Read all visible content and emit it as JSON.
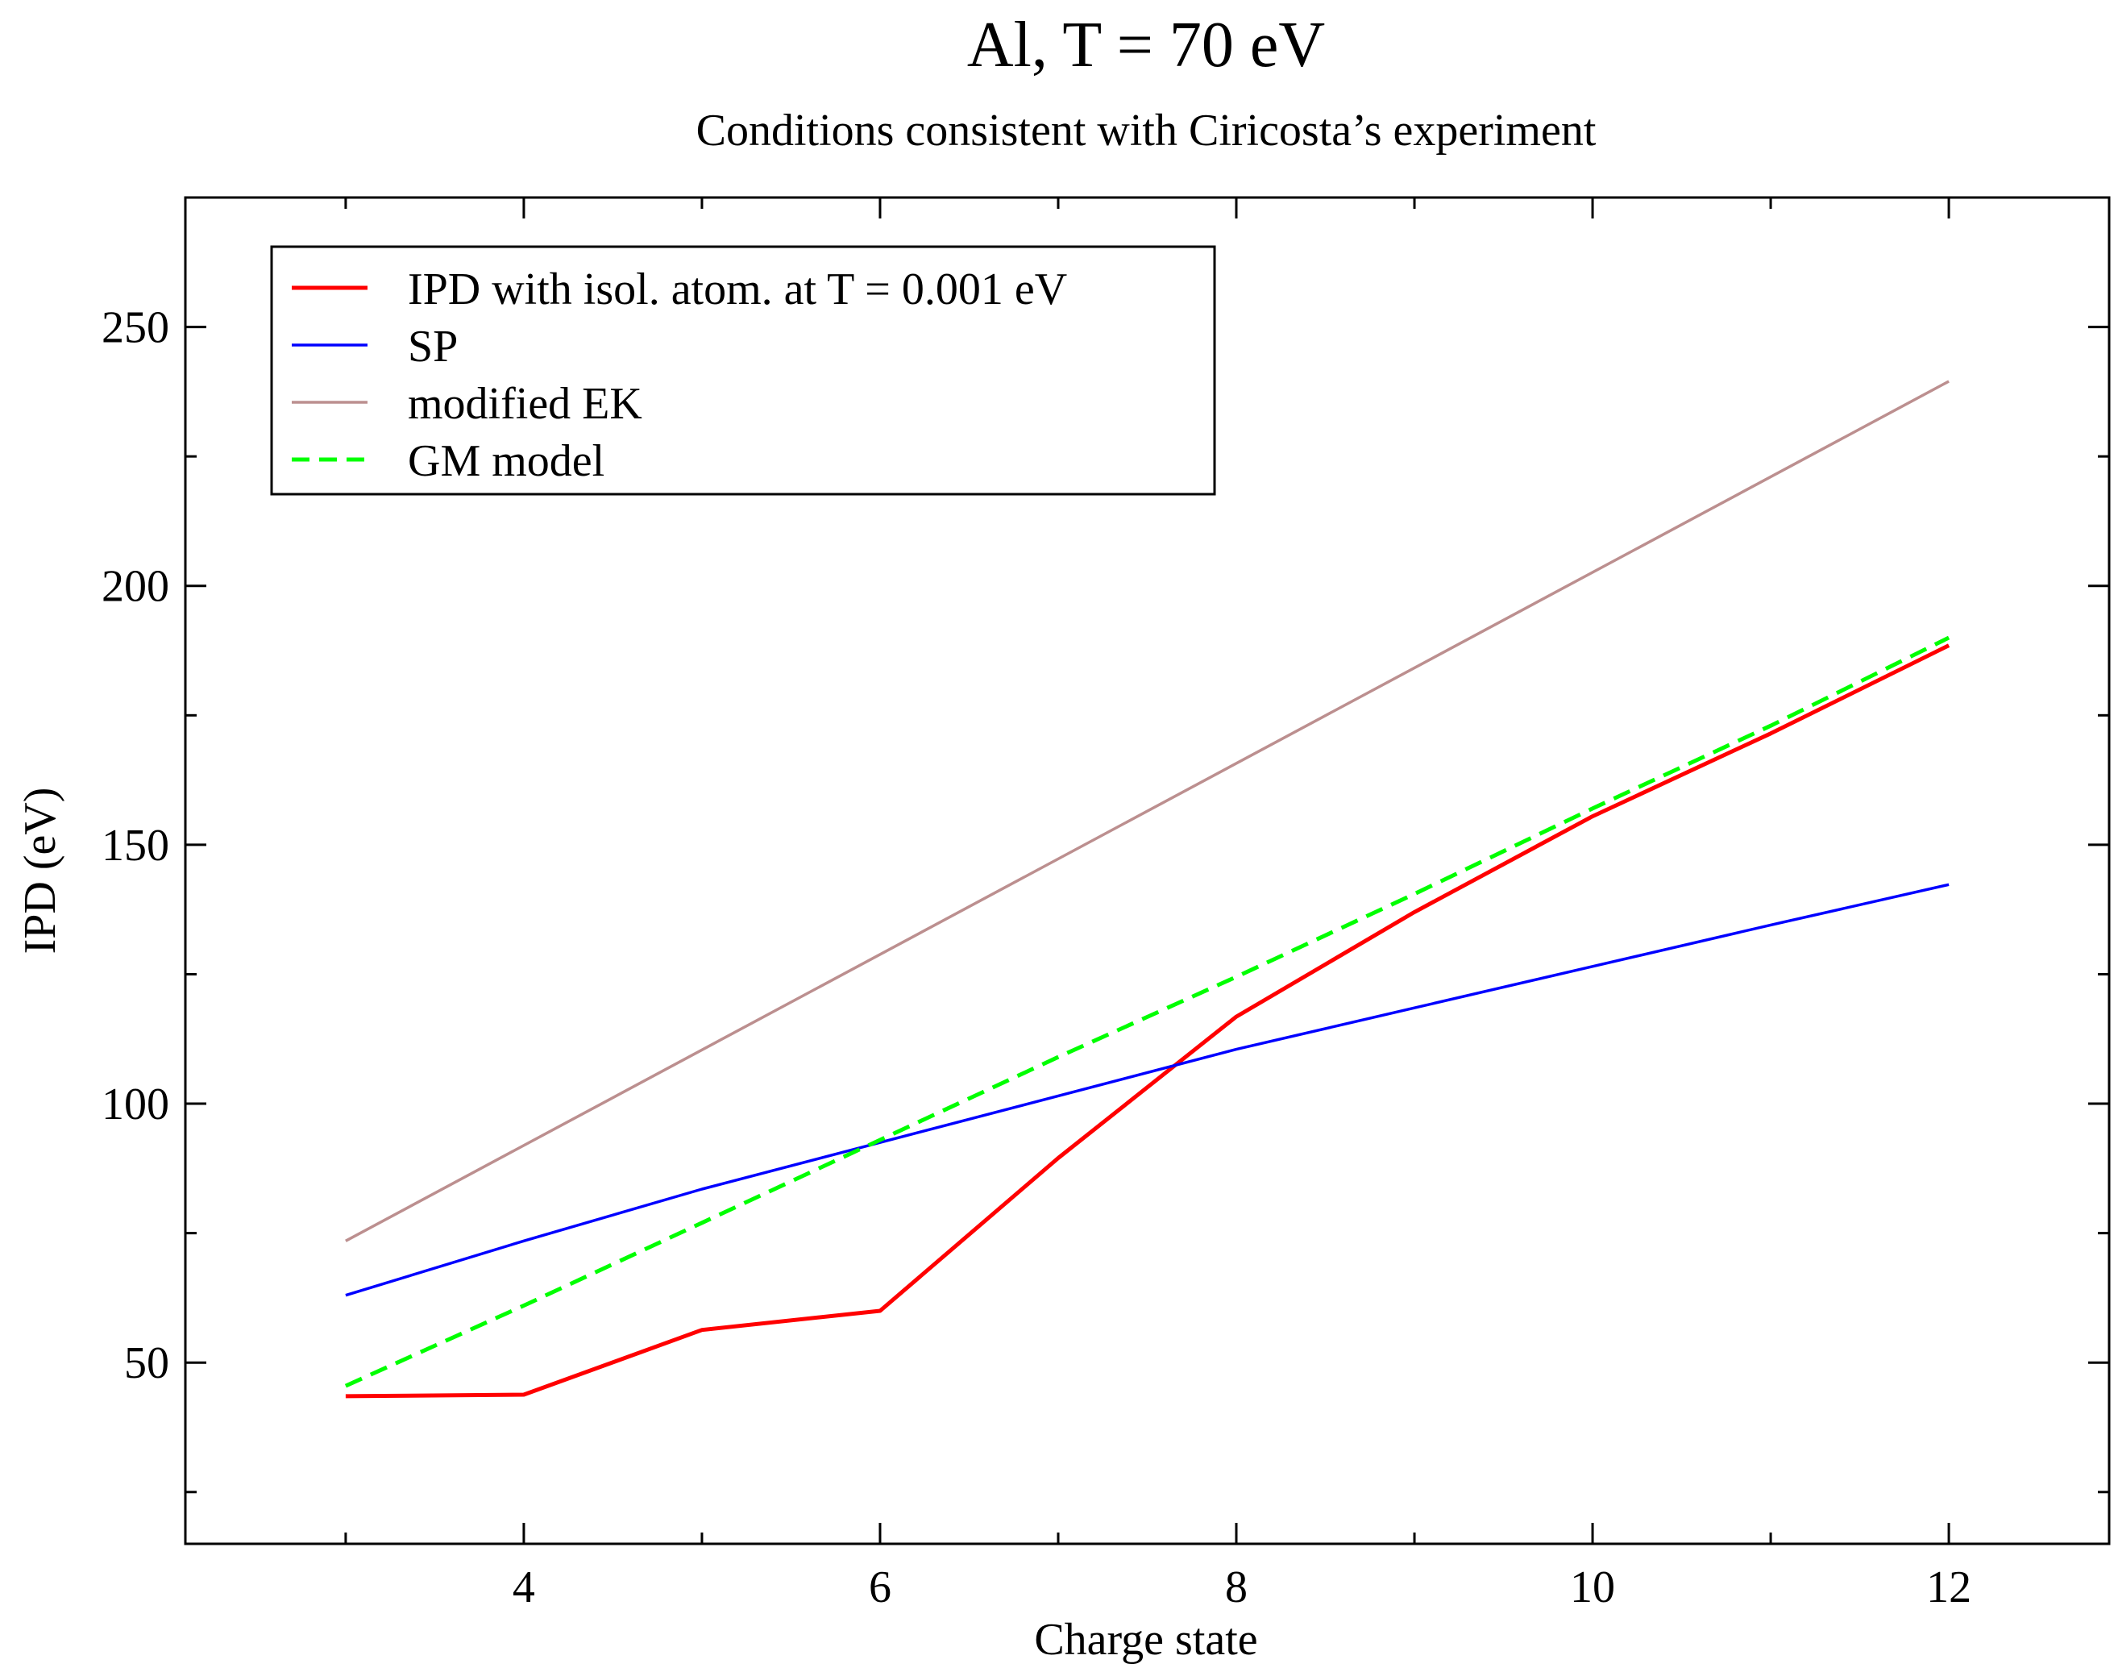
{
  "chart_data": {
    "type": "line",
    "title": "Al, T = 70 eV",
    "subtitle": "Conditions consistent with Ciricosta’s experiment",
    "xlabel": "Charge state",
    "ylabel": "IPD (eV)",
    "xlim": [
      2.1,
      12.9
    ],
    "ylim": [
      15,
      275
    ],
    "x_major_ticks": [
      4,
      6,
      8,
      10,
      12
    ],
    "x_minor_ticks": [
      3,
      5,
      7,
      9,
      11
    ],
    "y_major_ticks": [
      50,
      100,
      150,
      200,
      250
    ],
    "y_minor_ticks": [
      25,
      75,
      125,
      175,
      225
    ],
    "legend_position": "top-left",
    "series": [
      {
        "name": "IPD with isol. atom. at T = 0.001 eV",
        "color": "#ff0000",
        "style": "solid",
        "x": [
          3,
          4,
          5,
          6,
          7,
          8,
          9,
          10,
          11,
          12
        ],
        "y": [
          43.5,
          43.8,
          56.3,
          60.0,
          89.5,
          116.8,
          137.0,
          155.5,
          171.5,
          188.5
        ]
      },
      {
        "name": "SP",
        "color": "#0000ff",
        "style": "solid",
        "x": [
          3,
          4,
          5,
          6,
          7,
          8,
          9,
          10,
          11,
          12
        ],
        "y": [
          63.0,
          73.5,
          83.5,
          92.5,
          101.5,
          110.5,
          118.5,
          126.5,
          134.5,
          142.3
        ]
      },
      {
        "name": "modified EK",
        "color": "#bc8f8f",
        "style": "solid",
        "x": [
          3,
          12
        ],
        "y": [
          73.5,
          239.5
        ]
      },
      {
        "name": "GM model",
        "color": "#00ff00",
        "style": "dashed",
        "x": [
          3,
          4,
          5,
          6,
          7,
          8,
          9,
          10,
          11,
          12
        ],
        "y": [
          45.5,
          61.0,
          77.0,
          93.0,
          109.0,
          124.5,
          140.5,
          157.0,
          173.0,
          190.0
        ]
      }
    ]
  }
}
